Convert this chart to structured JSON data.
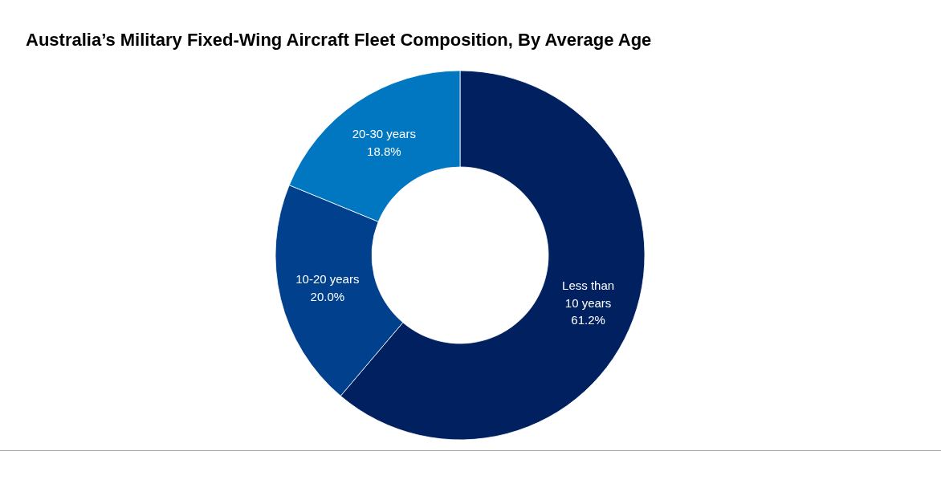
{
  "chart_data": {
    "type": "donut",
    "title": "Australia’s Military Fixed-Wing Aircraft Fleet Composition, By Average Age",
    "categories": [
      "Less than 10 years",
      "10-20 years",
      "20-30 years"
    ],
    "values": [
      61.2,
      20.0,
      18.8
    ],
    "colors": [
      "#002060",
      "#00408c",
      "#0077c0"
    ],
    "value_labels": [
      "61.2%",
      "20.0%",
      "18.8%"
    ]
  }
}
